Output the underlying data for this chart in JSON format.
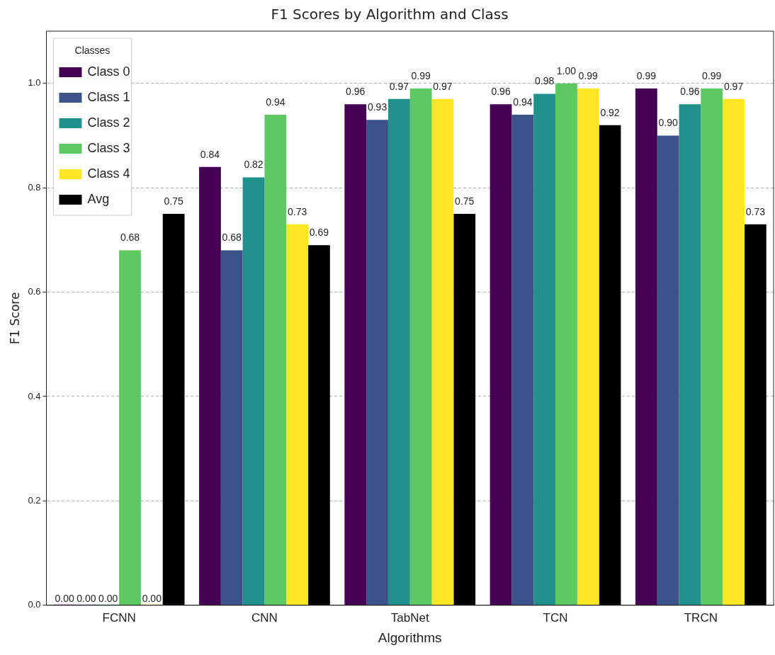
{
  "chart_data": {
    "type": "bar",
    "title": "F1 Scores by Algorithm and Class",
    "xlabel": "Algorithms",
    "ylabel": "F1 Score",
    "legend_title": "Classes",
    "categories": [
      "FCNN",
      "CNN",
      "TabNet",
      "TCN",
      "TRCN"
    ],
    "series": [
      {
        "name": "Class 0",
        "color": "#440154",
        "values": [
          0,
          0.84,
          0.96,
          0.96,
          0.99
        ],
        "value_labels": [
          "0.00",
          "0.84",
          "0.96",
          "0.96",
          "0.99"
        ]
      },
      {
        "name": "Class 1",
        "color": "#3b528b",
        "values": [
          0,
          0.68,
          0.93,
          0.94,
          0.9
        ],
        "value_labels": [
          "0.00",
          "0.68",
          "0.93",
          "0.94",
          "0.90"
        ]
      },
      {
        "name": "Class 2",
        "color": "#21918c",
        "values": [
          0,
          0.82,
          0.97,
          0.98,
          0.96
        ],
        "value_labels": [
          "0.00",
          "0.82",
          "0.97",
          "0.98",
          "0.96"
        ]
      },
      {
        "name": "Class 3",
        "color": "#5ec962",
        "values": [
          0.68,
          0.94,
          0.99,
          1.0,
          0.99
        ],
        "value_labels": [
          "0.68",
          "0.94",
          "0.99",
          "1.00",
          "0.99"
        ]
      },
      {
        "name": "Class 4",
        "color": "#fde725",
        "values": [
          0,
          0.73,
          0.97,
          0.99,
          0.97
        ],
        "value_labels": [
          "0.00",
          "0.73",
          "0.97",
          "0.99",
          "0.97"
        ]
      },
      {
        "name": "Avg",
        "color": "#000000",
        "values": [
          0.75,
          0.69,
          0.75,
          0.92,
          0.73
        ],
        "value_labels": [
          "0.75",
          "0.69",
          "0.75",
          "0.92",
          "0.73"
        ]
      }
    ],
    "ylim": [
      0,
      1.1
    ],
    "yticks": [
      {
        "value": 0,
        "label": "0.0"
      },
      {
        "value": 0.2,
        "label": "0.2"
      },
      {
        "value": 0.4,
        "label": "0.4"
      },
      {
        "value": 0.6,
        "label": "0.6"
      },
      {
        "value": 0.8,
        "label": "0.8"
      },
      {
        "value": 1,
        "label": "1.0"
      }
    ],
    "grid": "y",
    "line_style": "dashed",
    "legend": "top left"
  }
}
